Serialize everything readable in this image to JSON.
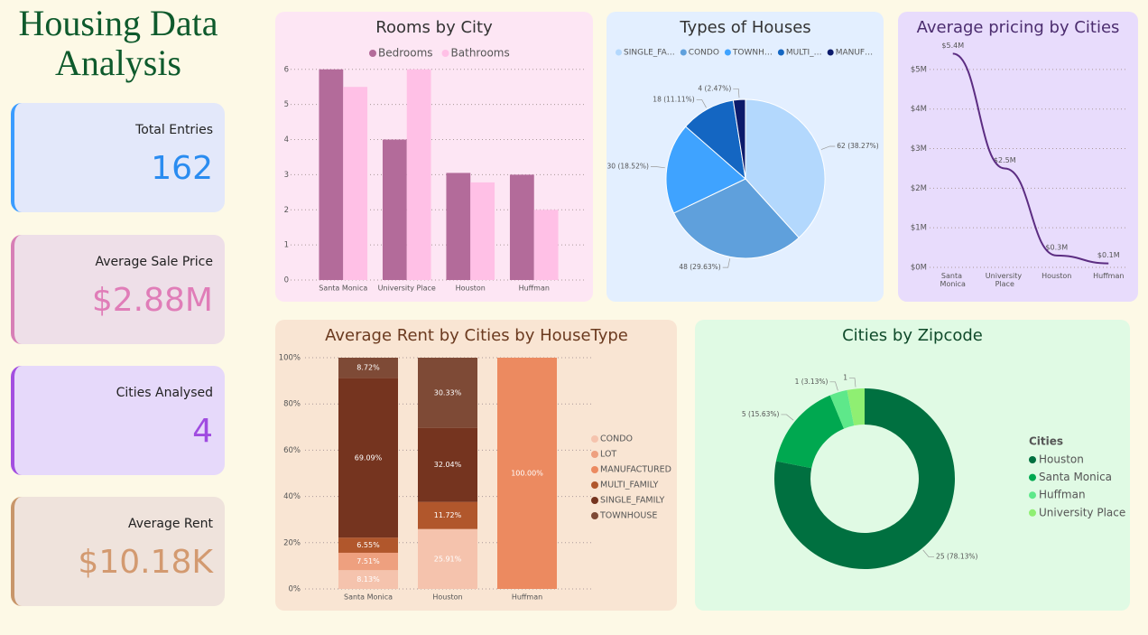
{
  "header": {
    "title": "Housing Data Analysis"
  },
  "cards": [
    {
      "label": "Total Entries",
      "value": 162
    },
    {
      "label": "Average Sale Price",
      "value": "$2.88M"
    },
    {
      "label": "Cities Analysed",
      "value": 4
    },
    {
      "label": "Average Rent",
      "value": "$10.18K"
    }
  ],
  "chart_data": [
    {
      "type": "bar",
      "title": "Rooms by City",
      "categories": [
        "Santa Monica",
        "University Place",
        "Houston",
        "Huffman"
      ],
      "series": [
        {
          "name": "Bedrooms",
          "color": "#b36b9a",
          "values": [
            6,
            4,
            3.05,
            3
          ]
        },
        {
          "name": "Bathrooms",
          "color": "#ffc0e6",
          "values": [
            5.5,
            6,
            2.78,
            2
          ]
        }
      ],
      "ylim": [
        0,
        6.2
      ],
      "yticks": [
        0,
        1,
        2,
        3,
        4,
        5,
        6
      ],
      "grid": true,
      "legend": "top"
    },
    {
      "type": "pie",
      "title": "Types of Houses",
      "categories": [
        "SINGLE_FA…",
        "CONDO",
        "TOWNH…",
        "MULTI_…",
        "MANUF…"
      ],
      "values": [
        62,
        48,
        30,
        18,
        4
      ],
      "value_labels": [
        "62 (38.27%)",
        "48 (29.63%)",
        "30 (18.52%)",
        "18 (11.11%)",
        "4 (2.47%)"
      ],
      "colors": [
        "#b3d8fd",
        "#5fa0dc",
        "#3fa3ff",
        "#1466c2",
        "#0b1a6b"
      ],
      "legend": "top"
    },
    {
      "type": "line",
      "title": "Average pricing by Cities",
      "categories": [
        "Santa Monica",
        "University Place",
        "Houston",
        "Huffman"
      ],
      "values": [
        5400000,
        2500000,
        300000,
        100000
      ],
      "value_labels": [
        "$5.4M",
        "$2.5M",
        "$0.3M",
        "$0.1M"
      ],
      "color": "#5c2d82",
      "ylim": [
        0,
        5500000
      ],
      "yticks": [
        {
          "value": 0,
          "label": "$0M"
        },
        {
          "value": 1000000,
          "label": "$1M"
        },
        {
          "value": 2000000,
          "label": "$2M"
        },
        {
          "value": 3000000,
          "label": "$3M"
        },
        {
          "value": 4000000,
          "label": "$4M"
        },
        {
          "value": 5000000,
          "label": "$5M"
        }
      ],
      "grid": true
    },
    {
      "type": "bar",
      "stacked": true,
      "title": "Average Rent by Cities by HouseType",
      "categories": [
        "Santa Monica",
        "Houston",
        "Huffman"
      ],
      "series": [
        {
          "name": "CONDO",
          "color": "#f5c3ad",
          "values": [
            8.13,
            25.91,
            null
          ],
          "value_labels": [
            "8.13%",
            "25.91%",
            null
          ]
        },
        {
          "name": "LOT",
          "color": "#eea07f",
          "values": [
            7.51,
            null,
            null
          ],
          "value_labels": [
            "7.51%",
            null,
            null
          ]
        },
        {
          "name": "MANUFACTURED",
          "color": "#ec8a60",
          "values": [
            null,
            null,
            100
          ],
          "value_labels": [
            null,
            null,
            "100.00%"
          ]
        },
        {
          "name": "MULTI_FAMILY",
          "color": "#b1572c",
          "values": [
            6.55,
            11.72,
            null
          ],
          "value_labels": [
            "6.55%",
            "11.72%",
            null
          ]
        },
        {
          "name": "SINGLE_FAMILY",
          "color": "#75341f",
          "values": [
            69.09,
            32.04,
            null
          ],
          "value_labels": [
            "69.09%",
            "32.04%",
            null
          ]
        },
        {
          "name": "TOWNHOUSE",
          "color": "#7e4a36",
          "values": [
            8.72,
            30.33,
            null
          ],
          "value_labels": [
            "8.72%",
            "30.33%",
            null
          ]
        }
      ],
      "ylim": [
        0,
        100
      ],
      "yticks": [
        {
          "value": 0,
          "label": "0%"
        },
        {
          "value": 20,
          "label": "20%"
        },
        {
          "value": 40,
          "label": "40%"
        },
        {
          "value": 60,
          "label": "60%"
        },
        {
          "value": 80,
          "label": "80%"
        },
        {
          "value": 100,
          "label": "100%"
        }
      ],
      "grid": true,
      "legend": "right"
    },
    {
      "type": "donut",
      "title": "Cities by Zipcode",
      "categories": [
        "Houston",
        "Santa Monica",
        "Huffman",
        "University Place"
      ],
      "values": [
        25,
        5,
        1,
        1
      ],
      "value_labels": [
        "25 (78.13%)",
        "5 (15.63%)",
        "1 (3.13%)",
        "1"
      ],
      "colors": [
        "#007040",
        "#00a850",
        "#5ee88a",
        "#8fef72"
      ],
      "legend": "right",
      "legend_title": "Cities"
    }
  ]
}
